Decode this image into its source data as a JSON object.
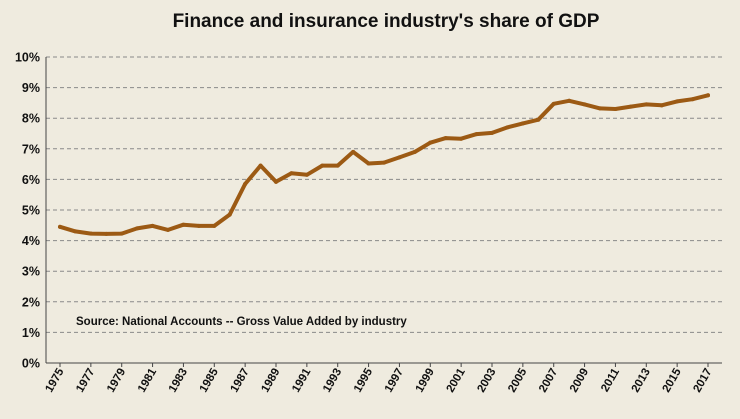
{
  "chart_data": {
    "type": "line",
    "title": "Finance and insurance industry's share of GDP",
    "annotation": "Source: National Accounts -- Gross Value Added by industry",
    "ylim": [
      0,
      10
    ],
    "y_ticks": [
      "0%",
      "1%",
      "2%",
      "3%",
      "4%",
      "5%",
      "6%",
      "7%",
      "8%",
      "9%",
      "10%"
    ],
    "x_ticks": [
      "1975",
      "1977",
      "1979",
      "1981",
      "1983",
      "1985",
      "1987",
      "1989",
      "1991",
      "1993",
      "1995",
      "1997",
      "1999",
      "2001",
      "2003",
      "2005",
      "2007",
      "2009",
      "2011",
      "2013",
      "2015",
      "2017"
    ],
    "grid": true,
    "legend": "none",
    "line_color": "#9c5a14",
    "series": [
      {
        "x": [
          1975,
          1976,
          1977,
          1978,
          1979,
          1980,
          1981,
          1982,
          1983,
          1984,
          1985,
          1986,
          1987,
          1988,
          1989,
          1990,
          1991,
          1992,
          1993,
          1994,
          1995,
          1996,
          1997,
          1998,
          1999,
          2000,
          2001,
          2002,
          2003,
          2004,
          2005,
          2006,
          2007,
          2008,
          2009,
          2010,
          2011,
          2012,
          2013,
          2014,
          2015,
          2016,
          2017
        ],
        "values": [
          4.45,
          4.3,
          4.23,
          4.22,
          4.23,
          4.4,
          4.48,
          4.35,
          4.52,
          4.48,
          4.48,
          4.85,
          5.85,
          6.45,
          5.92,
          6.2,
          6.15,
          6.45,
          6.45,
          6.9,
          6.52,
          6.55,
          6.72,
          6.9,
          7.2,
          7.35,
          7.33,
          7.48,
          7.52,
          7.7,
          7.83,
          7.95,
          8.47,
          8.57,
          8.45,
          8.32,
          8.3,
          8.38,
          8.45,
          8.42,
          8.55,
          8.62,
          8.75
        ]
      }
    ]
  }
}
